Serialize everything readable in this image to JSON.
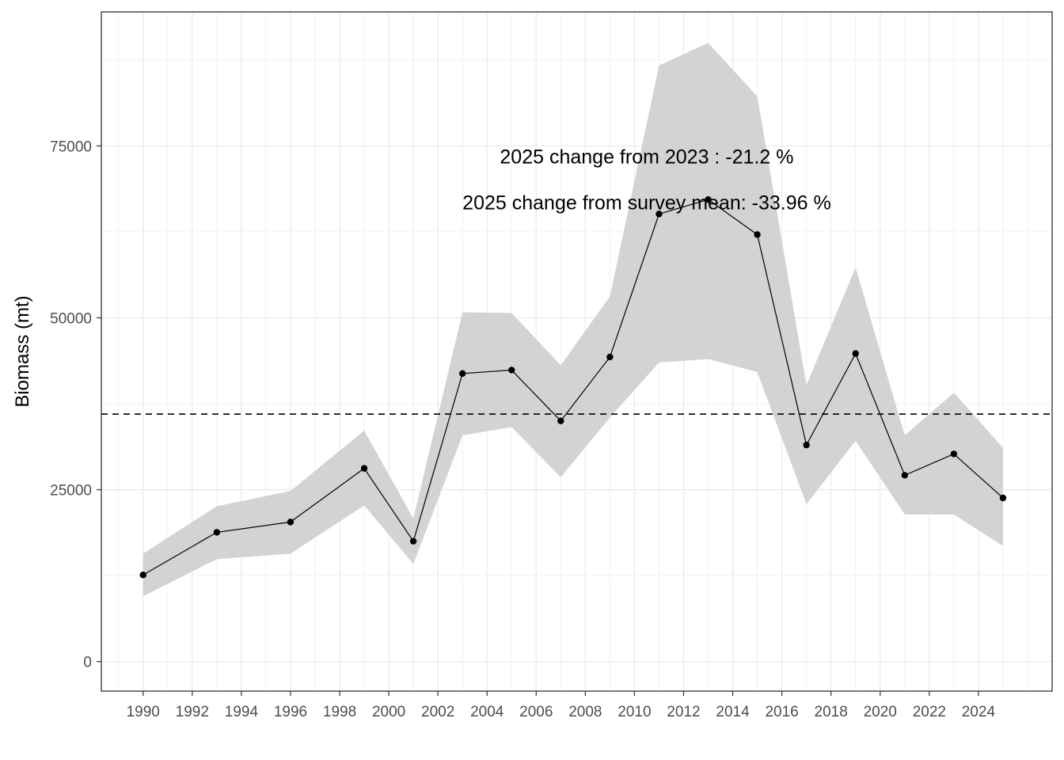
{
  "chart_data": {
    "type": "line",
    "title": "",
    "xlabel": "",
    "ylabel": "Biomass (mt)",
    "xlim": [
      1988.3,
      2027.0
    ],
    "ylim": [
      -4300,
      94500
    ],
    "x_ticks": [
      1990,
      1992,
      1994,
      1996,
      1998,
      2000,
      2002,
      2004,
      2006,
      2008,
      2010,
      2012,
      2014,
      2016,
      2018,
      2020,
      2022,
      2024
    ],
    "x_tick_labels": [
      "1990",
      "1992",
      "1994",
      "1996",
      "1998",
      "2000",
      "2002",
      "2004",
      "2006",
      "2008",
      "2010",
      "2012",
      "2014",
      "2016",
      "2018",
      "2020",
      "2022",
      "2024"
    ],
    "y_ticks": [
      0,
      25000,
      50000,
      75000
    ],
    "y_tick_labels": [
      "0",
      "25000",
      "50000",
      "75000"
    ],
    "grid": true,
    "theme": "bw",
    "series": [
      {
        "years": [
          1990,
          1993,
          1996,
          1999,
          2001,
          2003,
          2005,
          2007,
          2009,
          2011,
          2013,
          2015,
          2017,
          2019,
          2021,
          2023,
          2025
        ],
        "values": [
          12600,
          18800,
          20300,
          28100,
          17500,
          41900,
          42400,
          35000,
          44300,
          65100,
          67200,
          62100,
          31500,
          44800,
          27100,
          30200,
          23800
        ],
        "lower": [
          9500,
          14900,
          15700,
          22700,
          14200,
          32900,
          34100,
          26800,
          35500,
          43500,
          44000,
          42100,
          22900,
          32100,
          21400,
          21400,
          16800
        ],
        "upper": [
          15700,
          22600,
          24800,
          33600,
          20800,
          50800,
          50700,
          43100,
          53100,
          86700,
          90000,
          82200,
          40200,
          57300,
          32900,
          39100,
          31100
        ]
      }
    ],
    "reference_line": {
      "value": 36000,
      "style": "dashed"
    },
    "colors": {
      "line": "#000000",
      "band": "#d3d3d3",
      "grid": "#ebebeb",
      "border": "#333333"
    },
    "annotations": [
      {
        "text": "2025  change from  2023 :  -21.2 %",
        "x": 2010.5,
        "y": 73500
      },
      {
        "text": "2025  change from survey mean:  -33.96 %",
        "x": 2010.5,
        "y": 66800
      }
    ]
  }
}
